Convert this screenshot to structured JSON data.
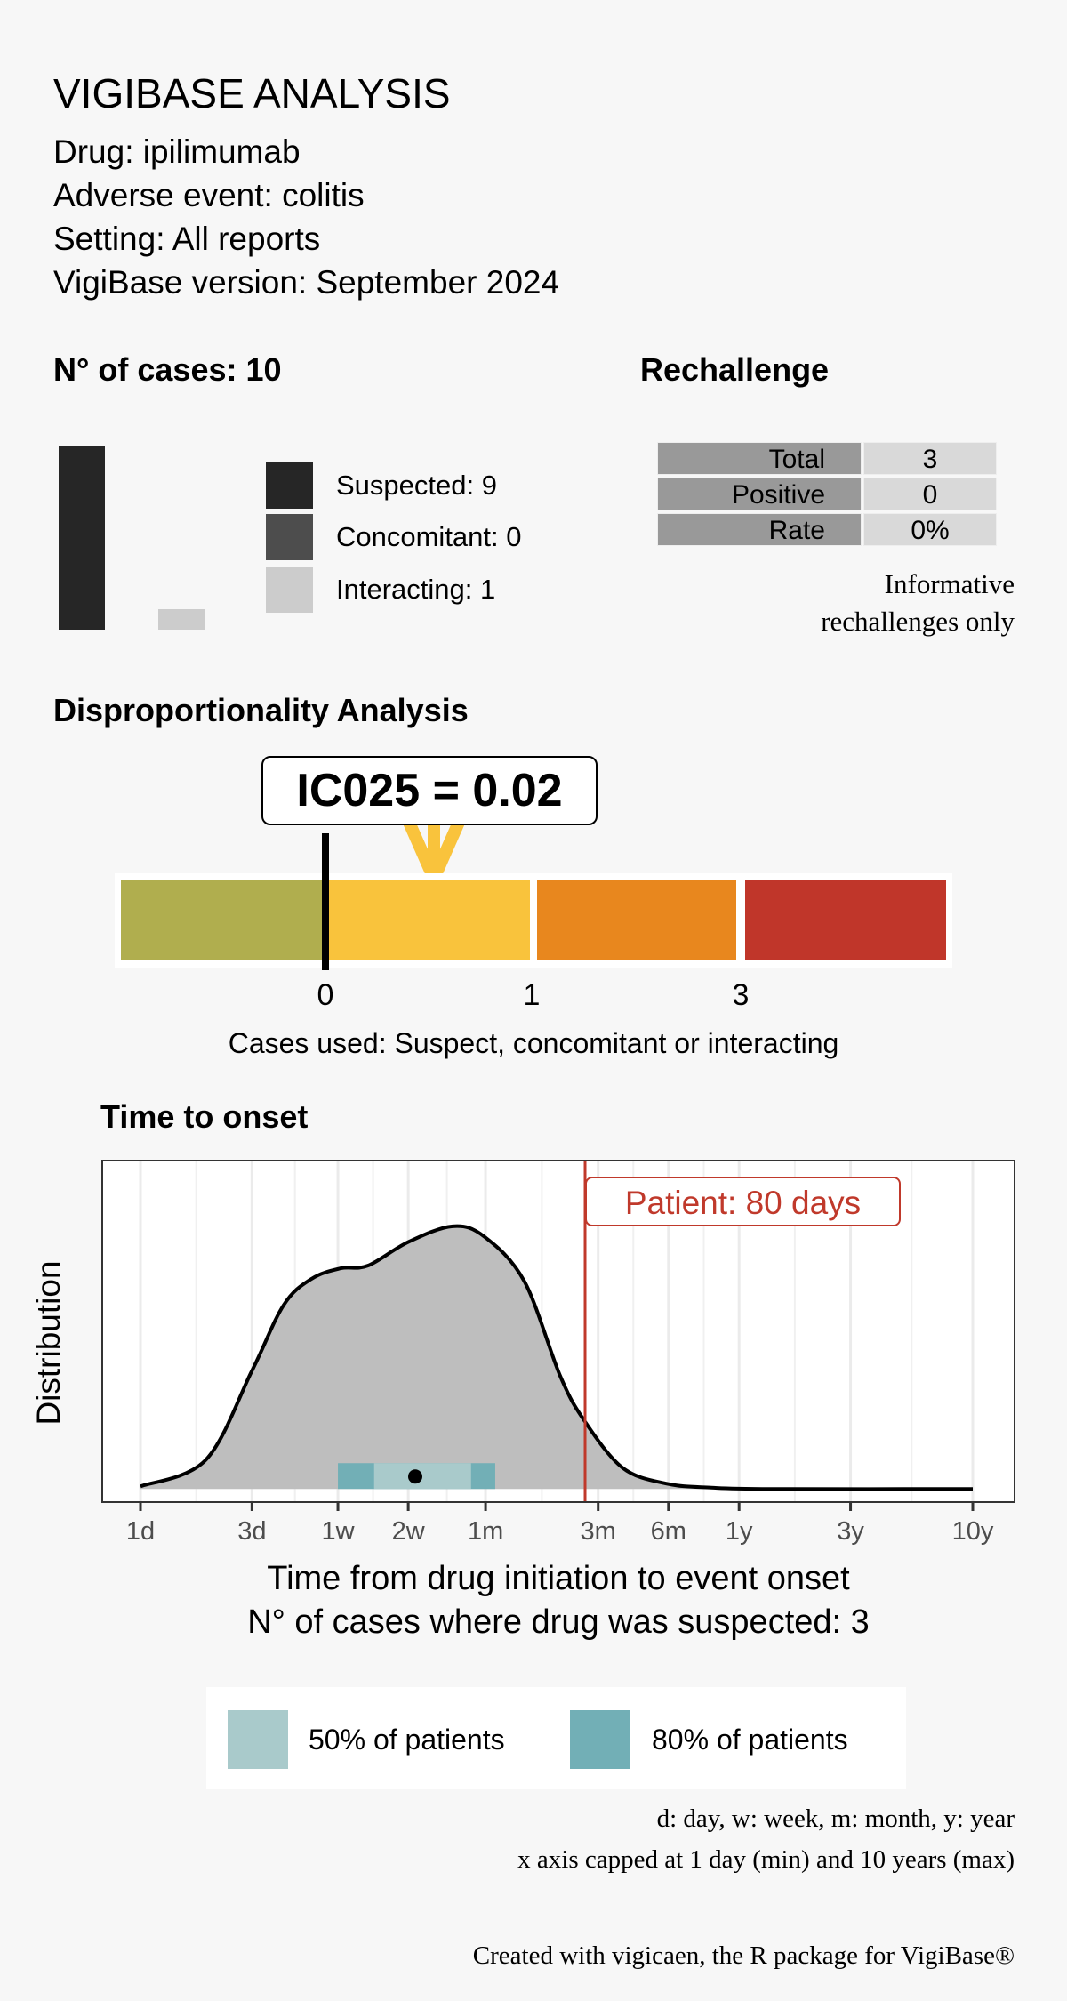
{
  "header": {
    "title": "VIGIBASE ANALYSIS",
    "drug": "Drug: ipilimumab",
    "adverse_event": "Adverse event: colitis",
    "setting": "Setting: All reports",
    "version": "VigiBase version: September 2024"
  },
  "cases": {
    "title": "N° of cases: 10",
    "items": [
      {
        "label": "Suspected: 9",
        "value": 9,
        "color": "#262626"
      },
      {
        "label": "Concomitant: 0",
        "value": 0,
        "color": "#4d4d4d"
      },
      {
        "label": "Interacting: 1",
        "value": 1,
        "color": "#cccccc"
      }
    ]
  },
  "rechallenge": {
    "title": "Rechallenge",
    "rows": [
      {
        "label": "Total",
        "value": "3"
      },
      {
        "label": "Positive",
        "value": "0"
      },
      {
        "label": "Rate",
        "value": "0%"
      }
    ],
    "note_line1": "Informative",
    "note_line2": "rechallenges only"
  },
  "disproportionality": {
    "title": "Disproportionality Analysis",
    "ic_label": "IC025 = 0.02",
    "ic025": 0.02,
    "thresholds": [
      "0",
      "1",
      "3"
    ],
    "segment_colors": [
      "#b0ae4e",
      "#f9c33c",
      "#e8871e",
      "#c0362a"
    ],
    "arrow_color": "#f9c33c",
    "cases_used": "Cases used: Suspect, concomitant or interacting"
  },
  "time_to_onset": {
    "title": "Time to onset",
    "patient_label": "Patient: 80 days",
    "footer_line1": "d: day, w: week, m: month, y: year",
    "footer_line2": "x axis capped at 1 day (min) and 10 years (max)",
    "legend": [
      {
        "label": "50% of patients",
        "color": "#a9cacb"
      },
      {
        "label": "80% of patients",
        "color": "#72afb6"
      }
    ]
  },
  "chart_data": {
    "type": "area",
    "title": "",
    "xlabel": "Time from drug initiation to event onset",
    "xlabel2": "N° of cases where drug was suspected: 3",
    "ylabel": "Distribution",
    "x_scale": "log",
    "x_unit": "days",
    "xlim": [
      1,
      3652
    ],
    "ylim": [
      -0.05,
      1.25
    ],
    "grid": true,
    "x_ticks": [
      {
        "label": "1d",
        "days": 1
      },
      {
        "label": "3d",
        "days": 3
      },
      {
        "label": "1w",
        "days": 7
      },
      {
        "label": "2w",
        "days": 14
      },
      {
        "label": "1m",
        "days": 30
      },
      {
        "label": "3m",
        "days": 91
      },
      {
        "label": "6m",
        "days": 182
      },
      {
        "label": "1y",
        "days": 365
      },
      {
        "label": "3y",
        "days": 1095
      },
      {
        "label": "10y",
        "days": 3652
      }
    ],
    "density": {
      "x": [
        1,
        1.9,
        3,
        4.1,
        5.4,
        7.2,
        9.4,
        14,
        21.7,
        29.7,
        44,
        62.6,
        79.4,
        116,
        179,
        278,
        500,
        3652
      ],
      "y": [
        0.01,
        0.11,
        0.45,
        0.7,
        0.8,
        0.84,
        0.85,
        0.94,
        1.0,
        0.96,
        0.79,
        0.43,
        0.26,
        0.08,
        0.02,
        0.005,
        0,
        0
      ],
      "fill": "#bebebe"
    },
    "range_80": [
      7,
      33
    ],
    "range_50": [
      10,
      26
    ],
    "median": 15,
    "patient_days": 80,
    "patient_color": "#c0392b"
  },
  "credit": "Created with vigicaen, the R package for VigiBase®"
}
